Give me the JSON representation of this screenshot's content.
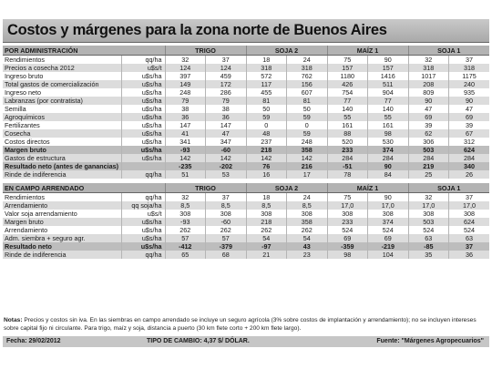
{
  "title": "Costos y márgenes para la zona norte de Buenos Aires",
  "section1": {
    "header": "POR ADMINISTRACIÓN",
    "groups": [
      "TRIGO",
      "SOJA 2",
      "MAÍZ 1",
      "SOJA 1"
    ],
    "rows": [
      {
        "label": "Rendimientos",
        "unit": "qq/ha",
        "values": [
          "32",
          "37",
          "18",
          "24",
          "75",
          "90",
          "32",
          "37"
        ]
      },
      {
        "label": "Precios a cosecha 2012",
        "unit": "u$s/t",
        "values": [
          "124",
          "124",
          "318",
          "318",
          "157",
          "157",
          "318",
          "318"
        ]
      },
      {
        "label": "Ingreso bruto",
        "unit": "u$s/ha",
        "values": [
          "397",
          "459",
          "572",
          "762",
          "1180",
          "1416",
          "1017",
          "1175"
        ]
      },
      {
        "label": "Total gastos de comercialización",
        "unit": "u$s/ha",
        "values": [
          "149",
          "172",
          "117",
          "156",
          "426",
          "511",
          "208",
          "240"
        ]
      },
      {
        "label": "Ingreso neto",
        "unit": "u$s/ha",
        "values": [
          "248",
          "286",
          "455",
          "607",
          "754",
          "904",
          "809",
          "935"
        ]
      },
      {
        "label": "Labranzas (por contratista)",
        "unit": "u$s/ha",
        "values": [
          "79",
          "79",
          "81",
          "81",
          "77",
          "77",
          "90",
          "90"
        ]
      },
      {
        "label": "Semilla",
        "unit": "u$s/ha",
        "values": [
          "38",
          "38",
          "50",
          "50",
          "140",
          "140",
          "47",
          "47"
        ]
      },
      {
        "label": "Agroquímicos",
        "unit": "u$s/ha",
        "values": [
          "36",
          "36",
          "59",
          "59",
          "55",
          "55",
          "69",
          "69"
        ]
      },
      {
        "label": "Fertilizantes",
        "unit": "u$s/ha",
        "values": [
          "147",
          "147",
          "0",
          "0",
          "161",
          "161",
          "39",
          "39"
        ]
      },
      {
        "label": "Cosecha",
        "unit": "u$s/ha",
        "values": [
          "41",
          "47",
          "48",
          "59",
          "88",
          "98",
          "62",
          "67"
        ]
      },
      {
        "label": "Costos directos",
        "unit": "u$s/ha",
        "values": [
          "341",
          "347",
          "237",
          "248",
          "520",
          "530",
          "306",
          "312"
        ]
      },
      {
        "label": "Margen bruto",
        "unit": "u$s/ha",
        "values": [
          "-93",
          "-60",
          "218",
          "358",
          "233",
          "374",
          "503",
          "624"
        ]
      },
      {
        "label": "Gastos de estructura",
        "unit": "u$s/ha",
        "values": [
          "142",
          "142",
          "142",
          "142",
          "284",
          "284",
          "284",
          "284"
        ]
      },
      {
        "label": "Resultado neto (antes de ganancias)",
        "unit": "",
        "values": [
          "-235",
          "-202",
          "76",
          "216",
          "-51",
          "90",
          "219",
          "340"
        ]
      },
      {
        "label": "Rinde de indiferencia",
        "unit": "qq/ha",
        "values": [
          "51",
          "53",
          "16",
          "17",
          "78",
          "84",
          "25",
          "26"
        ]
      }
    ]
  },
  "section2": {
    "header": "EN CAMPO ARRENDADO",
    "groups": [
      "TRIGO",
      "SOJA 2",
      "MAÍZ 1",
      "SOJA 1"
    ],
    "rows": [
      {
        "label": "Rendimientos",
        "unit": "qq/ha",
        "values": [
          "32",
          "37",
          "18",
          "24",
          "75",
          "90",
          "32",
          "37"
        ]
      },
      {
        "label": "Arrendamiento",
        "unit": "qq soja/ha",
        "values": [
          "8,5",
          "8,5",
          "8,5",
          "8,5",
          "17,0",
          "17,0",
          "17,0",
          "17,0"
        ]
      },
      {
        "label": "Valor soja arrendamiento",
        "unit": "u$s/t",
        "values": [
          "308",
          "308",
          "308",
          "308",
          "308",
          "308",
          "308",
          "308"
        ]
      },
      {
        "label": "Margen bruto",
        "unit": "u$s/ha",
        "values": [
          "-93",
          "-60",
          "218",
          "358",
          "233",
          "374",
          "503",
          "624"
        ]
      },
      {
        "label": "Arrendamiento",
        "unit": "u$s/ha",
        "values": [
          "262",
          "262",
          "262",
          "262",
          "524",
          "524",
          "524",
          "524"
        ]
      },
      {
        "label": "Adm. siembra + seguro agr.",
        "unit": "u$s/ha",
        "values": [
          "57",
          "57",
          "54",
          "54",
          "69",
          "69",
          "63",
          "63"
        ]
      },
      {
        "label": "Resultado neto",
        "unit": "u$s/ha",
        "values": [
          "-412",
          "-379",
          "-97",
          "43",
          "-359",
          "-219",
          "-85",
          "37"
        ]
      },
      {
        "label": "Rinde de indiferencia",
        "unit": "qq/ha",
        "values": [
          "65",
          "68",
          "21",
          "23",
          "98",
          "104",
          "35",
          "36"
        ]
      }
    ]
  },
  "notes": {
    "label": "Notas:",
    "text": "Precios y costos sin iva. En las siembras en campo arrendado se incluye un seguro agrícola (3% sobre costos de implantación y arrendamiento); no se incluyen intereses sobre capital fijo ni circulante. Para trigo, maíz y soja, distancia a puerto (30 km flete corto + 200 km flete largo)."
  },
  "footer": {
    "date": "Fecha: 29/02/2012",
    "rate": "TIPO DE CAMBIO: 4,37 $/ DÓLAR.",
    "source": "Fuente: \"Márgenes Agropecuarios\""
  },
  "colors": {
    "title_bg": "#b5b5b5",
    "header_bg": "#b3b3b3",
    "alt_row_bg": "#dcdcdc",
    "highlight_row_bg": "#bdbdbd"
  }
}
